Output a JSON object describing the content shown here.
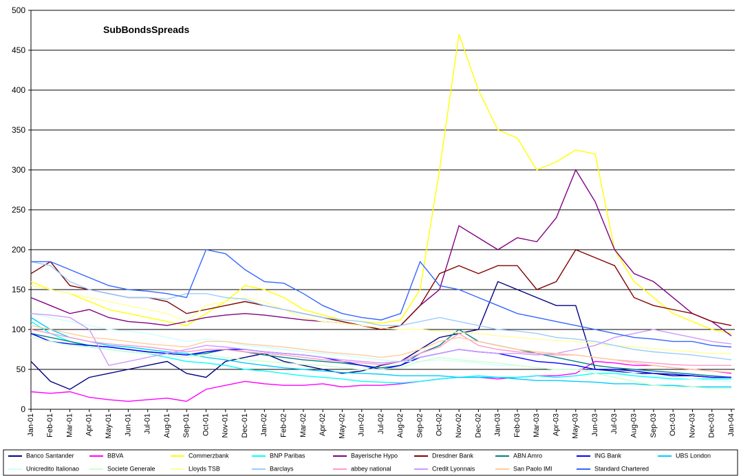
{
  "chart_data": {
    "type": "line",
    "title": "SubBondsSpreads",
    "categories": [
      "Jan-01",
      "Feb-01",
      "Mar-01",
      "Apr-01",
      "May-01",
      "Jun-01",
      "Jul-01",
      "Aug-01",
      "Sep-01",
      "Oct-01",
      "Nov-01",
      "Dec-01",
      "Jan-02",
      "Feb-02",
      "Mar-02",
      "Apr-02",
      "May-02",
      "Jun-02",
      "Jul-02",
      "Aug-02",
      "Sep-02",
      "Oct-02",
      "Nov-02",
      "Dec-02",
      "Jan-03",
      "Feb-03",
      "Mar-03",
      "Apr-03",
      "May-03",
      "Jun-03",
      "Jul-03",
      "Aug-03",
      "Sep-03",
      "Oct-03",
      "Nov-03",
      "Dec-03",
      "Jan-04"
    ],
    "ylim": [
      0,
      500
    ],
    "yticks": [
      0,
      50,
      100,
      150,
      200,
      250,
      300,
      350,
      400,
      450,
      500
    ],
    "grid": true,
    "series": [
      {
        "name": "Banco Santander",
        "color": "#000080",
        "values": [
          60,
          35,
          25,
          40,
          45,
          50,
          55,
          60,
          45,
          40,
          60,
          65,
          70,
          60,
          55,
          50,
          45,
          48,
          55,
          60,
          75,
          90,
          95,
          100,
          160,
          150,
          140,
          130,
          130,
          50,
          48,
          45,
          45,
          42,
          42,
          40,
          40
        ]
      },
      {
        "name": "BBVA",
        "color": "#ff00ff",
        "values": [
          22,
          20,
          22,
          15,
          12,
          10,
          12,
          14,
          10,
          25,
          30,
          35,
          32,
          30,
          30,
          32,
          28,
          30,
          30,
          32,
          35,
          38,
          40,
          40,
          38,
          40,
          42,
          42,
          45,
          60,
          58,
          55,
          55,
          52,
          50,
          48,
          45
        ]
      },
      {
        "name": "Commerzbank",
        "color": "#ffff00",
        "values": [
          160,
          150,
          145,
          135,
          125,
          120,
          115,
          110,
          105,
          120,
          135,
          155,
          150,
          140,
          125,
          118,
          112,
          110,
          108,
          112,
          150,
          300,
          470,
          400,
          350,
          340,
          300,
          310,
          325,
          320,
          200,
          160,
          140,
          120,
          110,
          100,
          95
        ]
      },
      {
        "name": "BNP Paribas",
        "color": "#00ffff",
        "values": [
          110,
          95,
          85,
          78,
          75,
          72,
          70,
          65,
          60,
          58,
          55,
          50,
          48,
          45,
          42,
          40,
          38,
          35,
          34,
          33,
          35,
          38,
          40,
          42,
          40,
          40,
          42,
          40,
          42,
          45,
          45,
          42,
          40,
          38,
          38,
          38,
          38
        ]
      },
      {
        "name": "Bayerische Hypo",
        "color": "#800080",
        "values": [
          140,
          130,
          120,
          125,
          115,
          110,
          108,
          105,
          110,
          115,
          118,
          120,
          118,
          115,
          112,
          110,
          108,
          105,
          100,
          105,
          130,
          150,
          230,
          215,
          200,
          215,
          210,
          240,
          300,
          260,
          200,
          170,
          160,
          140,
          120,
          110,
          92
        ]
      },
      {
        "name": "Dresdner Bank",
        "color": "#800000",
        "values": [
          170,
          185,
          155,
          150,
          145,
          140,
          140,
          135,
          120,
          125,
          130,
          135,
          130,
          125,
          120,
          115,
          110,
          105,
          100,
          105,
          130,
          170,
          180,
          170,
          180,
          180,
          150,
          160,
          200,
          190,
          180,
          140,
          130,
          125,
          120,
          110,
          105
        ]
      },
      {
        "name": "ABN Amro",
        "color": "#008080",
        "values": [
          95,
          90,
          85,
          80,
          78,
          75,
          72,
          70,
          68,
          70,
          75,
          72,
          68,
          65,
          62,
          60,
          58,
          55,
          52,
          55,
          70,
          80,
          100,
          85,
          80,
          75,
          70,
          65,
          60,
          55,
          52,
          50,
          48,
          46,
          44,
          42,
          40
        ]
      },
      {
        "name": "ING Bank",
        "color": "#0000ff",
        "values": [
          95,
          85,
          82,
          80,
          78,
          75,
          72,
          70,
          68,
          72,
          75,
          75,
          72,
          70,
          68,
          65,
          60,
          55,
          50,
          55,
          65,
          70,
          75,
          72,
          70,
          65,
          60,
          58,
          55,
          50,
          50,
          48,
          45,
          44,
          42,
          40,
          40
        ]
      },
      {
        "name": "UBS London",
        "color": "#00ccff",
        "values": [
          115,
          100,
          90,
          85,
          80,
          78,
          75,
          72,
          70,
          65,
          62,
          58,
          55,
          52,
          50,
          48,
          46,
          45,
          44,
          42,
          42,
          42,
          40,
          40,
          40,
          38,
          36,
          36,
          35,
          34,
          32,
          32,
          30,
          30,
          28,
          28,
          28
        ]
      },
      {
        "name": "Unicredito Italionao",
        "color": "#ccffff",
        "values": [
          120,
          115,
          110,
          105,
          100,
          98,
          95,
          90,
          85,
          88,
          85,
          80,
          78,
          75,
          72,
          70,
          68,
          65,
          62,
          60,
          60,
          62,
          60,
          58,
          55,
          55,
          52,
          50,
          50,
          48,
          46,
          45,
          42,
          40,
          38,
          36,
          35
        ]
      },
      {
        "name": "Societe Generale",
        "color": "#ccffcc",
        "values": [
          90,
          85,
          80,
          78,
          75,
          72,
          70,
          68,
          65,
          68,
          65,
          62,
          60,
          58,
          56,
          55,
          52,
          50,
          50,
          52,
          60,
          65,
          62,
          60,
          58,
          55,
          52,
          50,
          50,
          45,
          40,
          35,
          30,
          28,
          28,
          26,
          26
        ]
      },
      {
        "name": "Lloyds TSB",
        "color": "#ffff99",
        "values": [
          155,
          150,
          145,
          140,
          135,
          130,
          125,
          120,
          110,
          130,
          135,
          140,
          135,
          125,
          115,
          110,
          108,
          105,
          102,
          100,
          100,
          98,
          96,
          95,
          92,
          90,
          88,
          86,
          85,
          82,
          80,
          78,
          76,
          74,
          72,
          70,
          70
        ]
      },
      {
        "name": "Barclays",
        "color": "#99ccff",
        "values": [
          185,
          180,
          160,
          150,
          145,
          140,
          140,
          138,
          145,
          145,
          140,
          138,
          130,
          125,
          120,
          115,
          112,
          110,
          105,
          105,
          110,
          115,
          110,
          105,
          100,
          98,
          95,
          90,
          88,
          85,
          80,
          75,
          72,
          70,
          68,
          65,
          62
        ]
      },
      {
        "name": "abbey national",
        "color": "#ff99cc",
        "values": [
          100,
          95,
          90,
          85,
          82,
          80,
          78,
          75,
          72,
          75,
          75,
          72,
          70,
          68,
          65,
          62,
          60,
          58,
          56,
          60,
          70,
          78,
          95,
          80,
          75,
          72,
          70,
          68,
          68,
          65,
          62,
          60,
          58,
          56,
          55,
          55,
          55
        ]
      },
      {
        "name": "Credit Lyonnais",
        "color": "#cc99ff",
        "values": [
          120,
          118,
          115,
          100,
          55,
          60,
          65,
          70,
          75,
          80,
          78,
          75,
          72,
          70,
          68,
          65,
          62,
          60,
          58,
          60,
          65,
          70,
          75,
          72,
          70,
          70,
          68,
          70,
          75,
          80,
          90,
          95,
          100,
          95,
          90,
          85,
          82
        ]
      },
      {
        "name": "San Paolo IMI",
        "color": "#ffcc99",
        "values": [
          105,
          100,
          95,
          90,
          88,
          85,
          82,
          80,
          78,
          85,
          85,
          82,
          80,
          78,
          75,
          72,
          70,
          68,
          65,
          68,
          75,
          85,
          90,
          85,
          80,
          75,
          72,
          70,
          68,
          65,
          62,
          58,
          55,
          52,
          50,
          48,
          46
        ]
      },
      {
        "name": "Standard Chartered",
        "color": "#3366ff",
        "values": [
          185,
          185,
          175,
          165,
          155,
          150,
          148,
          145,
          140,
          200,
          195,
          175,
          160,
          158,
          145,
          130,
          120,
          115,
          112,
          120,
          185,
          155,
          150,
          140,
          130,
          120,
          115,
          110,
          105,
          100,
          95,
          90,
          88,
          85,
          85,
          80,
          78
        ]
      }
    ]
  }
}
